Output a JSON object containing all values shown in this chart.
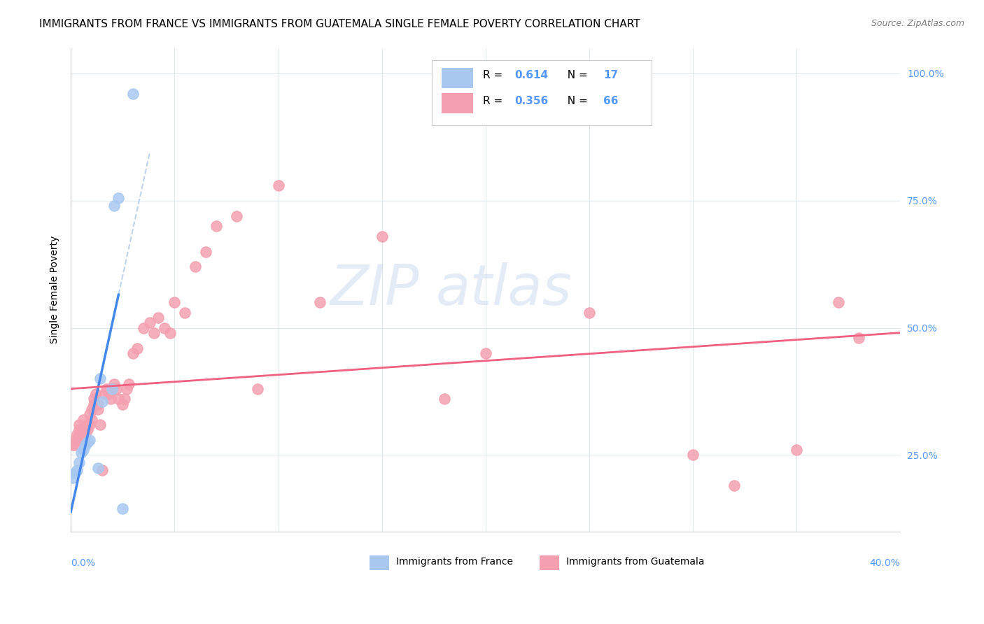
{
  "title": "IMMIGRANTS FROM FRANCE VS IMMIGRANTS FROM GUATEMALA SINGLE FEMALE POVERTY CORRELATION CHART",
  "source": "Source: ZipAtlas.com",
  "ylabel": "Single Female Poverty",
  "ytick_values": [
    0.25,
    0.5,
    0.75,
    1.0
  ],
  "R_france": 0.614,
  "N_france": 17,
  "R_guatemala": 0.356,
  "N_guatemala": 66,
  "france_color": "#a8c8f0",
  "guatemala_color": "#f4a0b0",
  "france_line_color": "#4488ee",
  "guatemala_line_color": "#f06080",
  "france_dashed_color": "#c0d4ee",
  "watermark_zip": "ZIP",
  "watermark_atlas": "atlas",
  "france_x": [
    0.001,
    0.002,
    0.003,
    0.004,
    0.005,
    0.006,
    0.007,
    0.008,
    0.009,
    0.013,
    0.014,
    0.015,
    0.02,
    0.021,
    0.023,
    0.025,
    0.03
  ],
  "france_y": [
    0.205,
    0.215,
    0.22,
    0.235,
    0.255,
    0.26,
    0.27,
    0.275,
    0.28,
    0.225,
    0.4,
    0.355,
    0.38,
    0.74,
    0.755,
    0.145,
    0.96
  ],
  "guatemala_x": [
    0.001,
    0.002,
    0.002,
    0.003,
    0.003,
    0.004,
    0.004,
    0.004,
    0.005,
    0.005,
    0.005,
    0.006,
    0.006,
    0.007,
    0.007,
    0.008,
    0.008,
    0.009,
    0.009,
    0.01,
    0.01,
    0.011,
    0.011,
    0.012,
    0.013,
    0.013,
    0.014,
    0.015,
    0.016,
    0.017,
    0.018,
    0.019,
    0.02,
    0.021,
    0.022,
    0.023,
    0.025,
    0.026,
    0.027,
    0.028,
    0.03,
    0.032,
    0.035,
    0.038,
    0.04,
    0.042,
    0.045,
    0.048,
    0.05,
    0.055,
    0.06,
    0.065,
    0.07,
    0.08,
    0.09,
    0.1,
    0.12,
    0.15,
    0.18,
    0.2,
    0.25,
    0.3,
    0.32,
    0.35,
    0.37,
    0.38
  ],
  "guatemala_y": [
    0.27,
    0.27,
    0.28,
    0.28,
    0.29,
    0.29,
    0.3,
    0.31,
    0.28,
    0.29,
    0.3,
    0.29,
    0.32,
    0.29,
    0.3,
    0.3,
    0.31,
    0.31,
    0.33,
    0.32,
    0.34,
    0.35,
    0.36,
    0.37,
    0.34,
    0.35,
    0.31,
    0.22,
    0.37,
    0.38,
    0.37,
    0.36,
    0.38,
    0.39,
    0.38,
    0.36,
    0.35,
    0.36,
    0.38,
    0.39,
    0.45,
    0.46,
    0.5,
    0.51,
    0.49,
    0.52,
    0.5,
    0.49,
    0.55,
    0.53,
    0.62,
    0.65,
    0.7,
    0.72,
    0.38,
    0.78,
    0.55,
    0.68,
    0.36,
    0.45,
    0.53,
    0.25,
    0.19,
    0.26,
    0.55,
    0.48
  ],
  "xlim": [
    0.0,
    0.4
  ],
  "ylim": [
    0.1,
    1.05
  ],
  "background_color": "#ffffff",
  "grid_color": "#e0e8f0",
  "title_fontsize": 11,
  "tick_label_color": "#5599ff",
  "marker_size": 120
}
